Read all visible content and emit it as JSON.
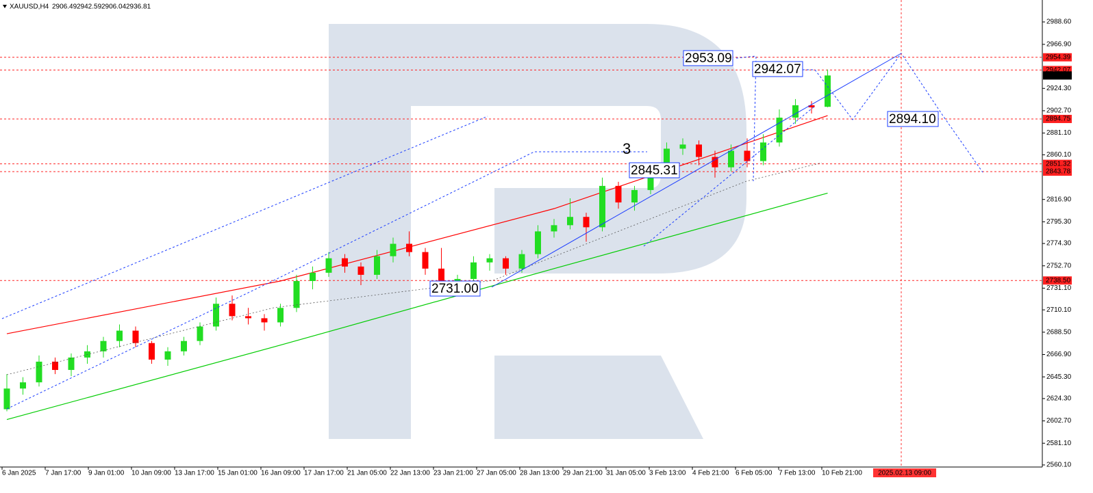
{
  "chart_data": {
    "type": "candlestick",
    "title": "XAUUSD,H4",
    "open": [
      2614,
      2634,
      2640,
      2660,
      2652,
      2664,
      2670,
      2680,
      2690,
      2678,
      2662,
      2670,
      2680,
      2694,
      2716,
      2704,
      2702,
      2698,
      2712,
      2738,
      2746,
      2760,
      2752,
      2744,
      2762,
      2774,
      2766,
      2750,
      2734,
      2740,
      2756,
      2760,
      2750,
      2764,
      2786,
      2792,
      2800,
      2790,
      2830,
      2814,
      2826,
      2846,
      2866,
      2870,
      2858,
      2848,
      2864,
      2854,
      2872,
      2896,
      2908,
      2906.49
    ],
    "high": [
      2648,
      2645,
      2666,
      2664,
      2668,
      2676,
      2684,
      2696,
      2694,
      2680,
      2674,
      2684,
      2698,
      2722,
      2724,
      2712,
      2706,
      2716,
      2744,
      2752,
      2766,
      2764,
      2756,
      2768,
      2780,
      2786,
      2770,
      2770,
      2744,
      2762,
      2764,
      2762,
      2768,
      2792,
      2798,
      2818,
      2804,
      2838,
      2834,
      2830,
      2852,
      2872,
      2876,
      2874,
      2864,
      2870,
      2876,
      2880,
      2904,
      2914,
      2912,
      2942.59
    ],
    "low": [
      2612,
      2628,
      2636,
      2648,
      2646,
      2658,
      2664,
      2674,
      2674,
      2658,
      2656,
      2666,
      2676,
      2690,
      2700,
      2696,
      2690,
      2694,
      2708,
      2730,
      2742,
      2746,
      2734,
      2740,
      2756,
      2762,
      2744,
      2728,
      2730,
      2736,
      2748,
      2744,
      2746,
      2760,
      2780,
      2788,
      2776,
      2786,
      2808,
      2806,
      2822,
      2842,
      2860,
      2850,
      2838,
      2844,
      2848,
      2850,
      2868,
      2890,
      2900,
      2906.04
    ],
    "close": [
      2634,
      2640,
      2660,
      2652,
      2664,
      2670,
      2680,
      2690,
      2678,
      2662,
      2670,
      2680,
      2694,
      2716,
      2704,
      2702,
      2698,
      2712,
      2738,
      2746,
      2760,
      2752,
      2744,
      2762,
      2774,
      2766,
      2750,
      2734,
      2740,
      2756,
      2760,
      2750,
      2764,
      2786,
      2792,
      2800,
      2790,
      2830,
      2814,
      2826,
      2846,
      2866,
      2870,
      2858,
      2848,
      2864,
      2854,
      2872,
      2896,
      2908,
      2906,
      2936.81
    ],
    "up_color": "#22dd22",
    "down_color": "#ff0000",
    "overlays": [
      {
        "color": "#ff0000",
        "x": [
          0,
          17,
          34,
          51
        ],
        "values": [
          2687,
          2738,
          2808,
          2898
        ]
      },
      {
        "color": "#00cc00",
        "x": [
          0,
          17,
          34,
          51
        ],
        "values": [
          2604,
          2676,
          2750,
          2823
        ]
      }
    ],
    "ylim": [
      2558.1,
      3009.8
    ],
    "yticks": [
      {
        "value": 2988.6,
        "label": "2988.60"
      },
      {
        "value": 2966.9,
        "label": "2966.90"
      },
      {
        "value": 2924.3,
        "label": "2924.30"
      },
      {
        "value": 2902.7,
        "label": "2902.70"
      },
      {
        "value": 2881.1,
        "label": "2881.10"
      },
      {
        "value": 2860.1,
        "label": "2860.10"
      },
      {
        "value": 2816.9,
        "label": "2816.90"
      },
      {
        "value": 2795.3,
        "label": "2795.30"
      },
      {
        "value": 2774.3,
        "label": "2774.30"
      },
      {
        "value": 2752.7,
        "label": "2752.70"
      },
      {
        "value": 2731.1,
        "label": "2731.10"
      },
      {
        "value": 2710.1,
        "label": "2710.10"
      },
      {
        "value": 2688.5,
        "label": "2688.50"
      },
      {
        "value": 2666.9,
        "label": "2666.90"
      },
      {
        "value": 2645.3,
        "label": "2645.30"
      },
      {
        "value": 2624.3,
        "label": "2624.30"
      },
      {
        "value": 2602.7,
        "label": "2602.70"
      },
      {
        "value": 2581.1,
        "label": "2581.10"
      },
      {
        "value": 2560.1,
        "label": "2560.10"
      }
    ],
    "levels": [
      2954.39,
      2942.07,
      2894.75,
      2851.32,
      2843.78,
      {
        "value": 2738.5,
        "label": "2738.50"
      }
    ],
    "current_price": 2936.81,
    "x_labels": [
      "6 Jan 2025",
      "7 Jan 17:00",
      "9 Jan 01:00",
      "10 Jan 09:00",
      "13 Jan 17:00",
      "15 Jan 01:00",
      "16 Jan 09:00",
      "17 Jan 17:00",
      "21 Jan 05:00",
      "22 Jan 13:00",
      "23 Jan 21:00",
      "27 Jan 05:00",
      "28 Jan 13:00",
      "29 Jan 21:00",
      "31 Jan 05:00",
      "3 Feb 13:00",
      "4 Feb 21:00",
      "6 Feb 05:00",
      "7 Feb 13:00",
      "10 Feb 21:00"
    ],
    "cursor_label": "2025.02.13 09:00",
    "annotations": [
      "2953.09",
      "2942.07",
      "2894.10",
      "2845.31",
      "2731.00",
      "3"
    ]
  }
}
